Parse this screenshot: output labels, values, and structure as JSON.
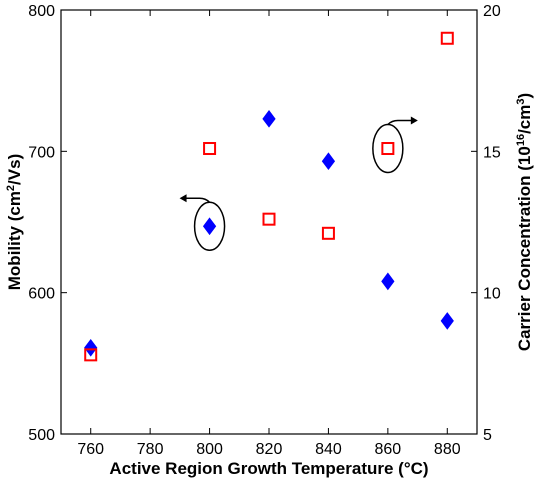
{
  "chart_data": {
    "type": "scatter",
    "xlabel": "Active Region Growth Temperature (°C)",
    "ylabel_left": {
      "pre": "Mobility (cm",
      "sup": "2",
      "post": "/Vs)"
    },
    "ylabel_right": {
      "pre": "Carrier Concentration (10",
      "sup1": "16",
      "mid": "/cm",
      "sup2": "3",
      "post": ")"
    },
    "xlim": [
      750,
      890
    ],
    "ylim_left": [
      500,
      800
    ],
    "ylim_right": [
      5,
      20
    ],
    "x_ticks": [
      760,
      780,
      800,
      820,
      840,
      860,
      880
    ],
    "y_ticks_left": [
      500,
      600,
      700,
      800
    ],
    "y_ticks_right": [
      5,
      10,
      15,
      20
    ],
    "grid": false,
    "series": [
      {
        "axis": "left",
        "marker": "diamond",
        "color": "#0000ff",
        "x": [
          760,
          800,
          820,
          840,
          860,
          880
        ],
        "y": [
          561,
          647,
          723,
          693,
          608,
          580
        ]
      },
      {
        "axis": "right",
        "marker": "square",
        "color": "#ff0000",
        "x": [
          760,
          800,
          820,
          840,
          860,
          880
        ],
        "y": [
          7.8,
          15.1,
          12.6,
          12.1,
          15.1,
          19.0
        ]
      }
    ],
    "annotations": [
      {
        "type": "ellipse-arrow",
        "target_series": 0,
        "x": 800,
        "y": 647,
        "direction": "left"
      },
      {
        "type": "ellipse-arrow",
        "target_series": 1,
        "x": 860,
        "y": 15.1,
        "direction": "right"
      }
    ]
  }
}
